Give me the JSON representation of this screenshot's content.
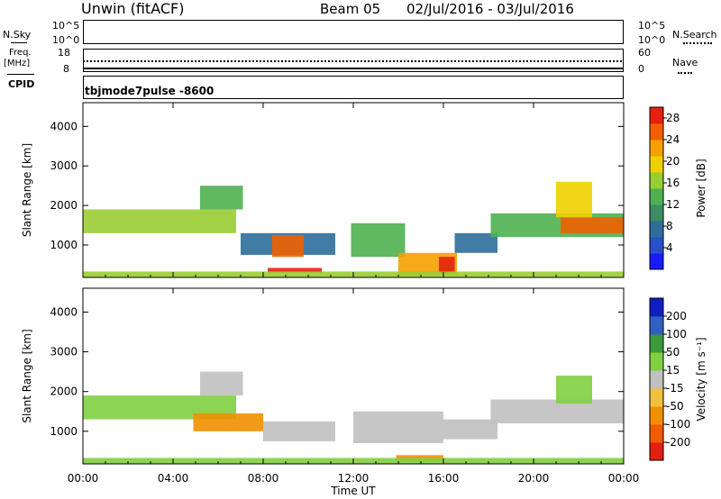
{
  "header": {
    "station": "Unwin (fitACF)",
    "beam": "Beam 05",
    "dates": "02/Jul/2016 - 03/Jul/2016"
  },
  "top_panels": {
    "nsky_label": "N.Sky",
    "nsky_ticks": [
      "10^5",
      "10^0"
    ],
    "nsearch_label": "N.Search",
    "nsearch_ticks": [
      "10^5",
      "10^0"
    ],
    "freq_label_1": "Freq.",
    "freq_label_2": "[MHz]",
    "freq_ticks": [
      "18",
      "8"
    ],
    "nave_label": "Nave",
    "nave_ticks": [
      "60",
      "0"
    ],
    "cpid_label": "CPID",
    "cpid_text": "tbjmode7pulse -8600"
  },
  "chart_data": [
    {
      "type": "heatmap",
      "title": "",
      "ylabel": "Slant Range [km]",
      "xlabel": "Time UT",
      "x_ticks": [
        "00:00",
        "04:00",
        "08:00",
        "12:00",
        "16:00",
        "20:00",
        "00:00"
      ],
      "y_ticks": [
        "1000",
        "2000",
        "3000",
        "4000"
      ],
      "xlim_hours": [
        0,
        24
      ],
      "ylim_km": [
        180,
        4600
      ],
      "colorbar": {
        "label": "Power [dB]",
        "ticks": [
          "4",
          "8",
          "12",
          "16",
          "20",
          "24",
          "28"
        ],
        "range": [
          0,
          30
        ],
        "colors": [
          "#1a1aff",
          "#2850c8",
          "#2e6e9a",
          "#3c8c64",
          "#4fb050",
          "#9acd32",
          "#f0d000",
          "#f5a000",
          "#f06000",
          "#e62010"
        ]
      },
      "regions": [
        {
          "t0": 0.0,
          "t1": 6.8,
          "r0": 1300,
          "r1": 1900,
          "level": 16
        },
        {
          "t0": 5.2,
          "t1": 7.1,
          "r0": 1900,
          "r1": 2500,
          "level": 12
        },
        {
          "t0": 7.0,
          "t1": 11.2,
          "r0": 750,
          "r1": 1300,
          "level": 8
        },
        {
          "t0": 8.4,
          "t1": 9.8,
          "r0": 700,
          "r1": 1250,
          "level": 24
        },
        {
          "t0": 8.2,
          "t1": 10.6,
          "r0": 300,
          "r1": 420,
          "level": 28
        },
        {
          "t0": 11.9,
          "t1": 14.3,
          "r0": 700,
          "r1": 1550,
          "level": 14
        },
        {
          "t0": 14.0,
          "t1": 16.6,
          "r0": 250,
          "r1": 800,
          "level": 22
        },
        {
          "t0": 15.8,
          "t1": 16.5,
          "r0": 300,
          "r1": 700,
          "level": 28
        },
        {
          "t0": 16.5,
          "t1": 18.4,
          "r0": 800,
          "r1": 1300,
          "level": 8
        },
        {
          "t0": 18.1,
          "t1": 24.0,
          "r0": 1200,
          "r1": 1800,
          "level": 14
        },
        {
          "t0": 21.2,
          "t1": 24.0,
          "r0": 1300,
          "r1": 1700,
          "level": 24
        },
        {
          "t0": 21.0,
          "t1": 22.6,
          "r0": 1700,
          "r1": 2600,
          "level": 18
        },
        {
          "t0": 0.0,
          "t1": 24.0,
          "r0": 190,
          "r1": 330,
          "level": 16
        }
      ]
    },
    {
      "type": "heatmap",
      "title": "",
      "ylabel": "Slant Range [km]",
      "xlabel": "Time UT",
      "x_ticks": [
        "00:00",
        "04:00",
        "08:00",
        "12:00",
        "16:00",
        "20:00",
        "00:00"
      ],
      "y_ticks": [
        "1000",
        "2000",
        "3000",
        "4000"
      ],
      "xlim_hours": [
        0,
        24
      ],
      "ylim_km": [
        180,
        4600
      ],
      "colorbar": {
        "label": "Velocity [m s⁻¹]",
        "ticks": [
          "-200",
          "-100",
          "-50",
          "-15",
          "15",
          "50",
          "100",
          "200"
        ],
        "colors": [
          "#e02010",
          "#f05a00",
          "#f09000",
          "#f0c040",
          "#c0c0c0",
          "#80d040",
          "#3a9a3a",
          "#3060c0",
          "#1020c0"
        ]
      },
      "regions": [
        {
          "t0": 0.0,
          "t1": 6.8,
          "r0": 1300,
          "r1": 1900,
          "level": 15
        },
        {
          "t0": 5.2,
          "t1": 7.1,
          "r0": 1900,
          "r1": 2500,
          "level": 0
        },
        {
          "t0": 4.9,
          "t1": 8.0,
          "r0": 1000,
          "r1": 1450,
          "level": -60
        },
        {
          "t0": 8.0,
          "t1": 11.2,
          "r0": 750,
          "r1": 1250,
          "level": 0
        },
        {
          "t0": 12.0,
          "t1": 16.0,
          "r0": 700,
          "r1": 1500,
          "level": 0
        },
        {
          "t0": 13.9,
          "t1": 16.0,
          "r0": 250,
          "r1": 400,
          "level": -60
        },
        {
          "t0": 16.0,
          "t1": 18.4,
          "r0": 800,
          "r1": 1300,
          "level": 0
        },
        {
          "t0": 18.1,
          "t1": 24.0,
          "r0": 1200,
          "r1": 1800,
          "level": 0
        },
        {
          "t0": 21.0,
          "t1": 22.6,
          "r0": 1700,
          "r1": 2400,
          "level": 25
        },
        {
          "t0": 0.0,
          "t1": 24.0,
          "r0": 190,
          "r1": 330,
          "level": 25
        }
      ]
    }
  ]
}
